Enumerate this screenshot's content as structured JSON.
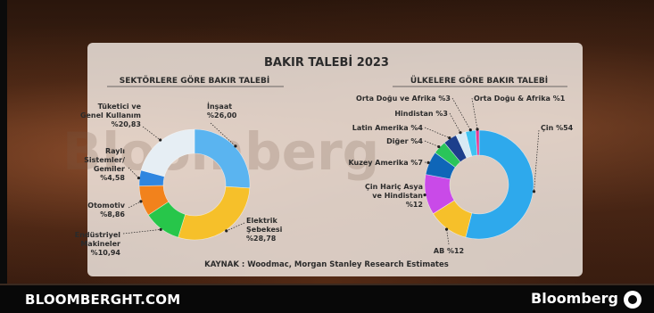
{
  "main_title": "BAKIR TALEBİ 2023",
  "watermark": "Bloomberg",
  "source": "KAYNAK : Woodmac, Morgan Stanley Research Estimates",
  "footer": {
    "site": "BLOOMBERGHT.COM",
    "brand": "Bloomberg",
    "logo_icon": "bloomberg-globe-icon"
  },
  "chart_data": [
    {
      "type": "pie",
      "donut": true,
      "title": "SEKTÖRLERE GÖRE BAKIR TALEBİ",
      "slices": [
        {
          "label_lines": [
            "İnşaat",
            "%26,00"
          ],
          "value": 26.0,
          "color": "#5ab4f0"
        },
        {
          "label_lines": [
            "Elektrik",
            "Şebekesi",
            "%28,78"
          ],
          "value": 28.78,
          "color": "#f6c02a"
        },
        {
          "label_lines": [
            "Endüstriyel",
            "Makineler",
            "%10,94"
          ],
          "value": 10.94,
          "color": "#27c64a"
        },
        {
          "label_lines": [
            "Otomotiv",
            "%8,86"
          ],
          "value": 8.86,
          "color": "#f2821c"
        },
        {
          "label_lines": [
            "Raylı",
            "Sistemler/",
            "Gemiler",
            "%4,58"
          ],
          "value": 4.58,
          "color": "#2f86e0"
        },
        {
          "label_lines": [
            "Tüketici ve",
            "Genel Kullanım",
            "%20,83"
          ],
          "value": 20.83,
          "color": "#e6eef4"
        }
      ]
    },
    {
      "type": "pie",
      "donut": true,
      "title": "ÜLKELERE GÖRE BAKIR TALEBİ",
      "slices": [
        {
          "label_lines": [
            "Çin %54"
          ],
          "value": 54,
          "color": "#2ea9ec"
        },
        {
          "label_lines": [
            "AB %12"
          ],
          "value": 12,
          "color": "#f6c02a"
        },
        {
          "label_lines": [
            "Çin Hariç Asya",
            "ve Hindistan",
            "%12"
          ],
          "value": 12,
          "color": "#c94ae8"
        },
        {
          "label_lines": [
            "Kuzey Amerika %7"
          ],
          "value": 7,
          "color": "#0f66b8"
        },
        {
          "label_lines": [
            "Diğer %4"
          ],
          "value": 4,
          "color": "#2ac45a"
        },
        {
          "label_lines": [
            "Latin Amerika %4"
          ],
          "value": 4,
          "color": "#1d3f8c"
        },
        {
          "label_lines": [
            "Hindistan %3"
          ],
          "value": 3,
          "color": "#d7e9f4"
        },
        {
          "label_lines": [
            "Orta Doğu ve Afrika %3"
          ],
          "value": 3,
          "color": "#3fc3f2"
        },
        {
          "label_lines": [
            "Orta Doğu & Afrika %1"
          ],
          "value": 1,
          "color": "#e53a93"
        }
      ]
    }
  ]
}
